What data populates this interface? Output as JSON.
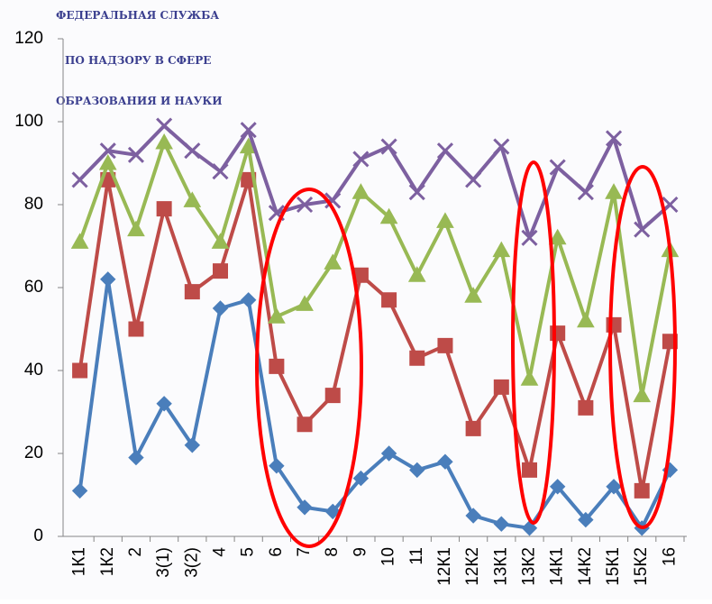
{
  "chart_data": {
    "type": "line",
    "header_lines": [
      "ФЕДЕРАЛЬНАЯ СЛУЖБА",
      "ПО НАДЗОРУ В СФЕРЕ",
      "ОБРАЗОВАНИЯ И НАУКИ"
    ],
    "categories": [
      "1К1",
      "1К2",
      "2",
      "3(1)",
      "3(2)",
      "4",
      "5",
      "6",
      "7",
      "8",
      "9",
      "10",
      "11",
      "12К1",
      "12К2",
      "13К1",
      "13К2",
      "14К1",
      "14К2",
      "15К1",
      "15К2",
      "16"
    ],
    "series": [
      {
        "color": "#4a7ebb",
        "marker": "diamond",
        "values": [
          11,
          62,
          19,
          32,
          22,
          55,
          57,
          17,
          7,
          6,
          14,
          20,
          16,
          18,
          5,
          3,
          2,
          12,
          4,
          12,
          2,
          16
        ]
      },
      {
        "color": "#be4b48",
        "marker": "square",
        "values": [
          40,
          86,
          50,
          79,
          59,
          64,
          86,
          41,
          27,
          34,
          63,
          57,
          43,
          46,
          26,
          36,
          16,
          49,
          31,
          51,
          11,
          47
        ]
      },
      {
        "color": "#98b954",
        "marker": "triangle",
        "values": [
          71,
          90,
          74,
          95,
          81,
          71,
          94,
          53,
          56,
          66,
          83,
          77,
          63,
          76,
          58,
          69,
          38,
          72,
          52,
          83,
          34,
          69
        ]
      },
      {
        "color": "#7d60a0",
        "marker": "cross",
        "values": [
          86,
          93,
          92,
          99,
          93,
          88,
          98,
          78,
          80,
          81,
          91,
          94,
          83,
          93,
          86,
          94,
          72,
          89,
          83,
          96,
          74,
          80
        ]
      }
    ],
    "ylim": [
      0,
      120
    ],
    "yticks": [
      0,
      20,
      40,
      60,
      80,
      100,
      120
    ],
    "grid": false
  }
}
